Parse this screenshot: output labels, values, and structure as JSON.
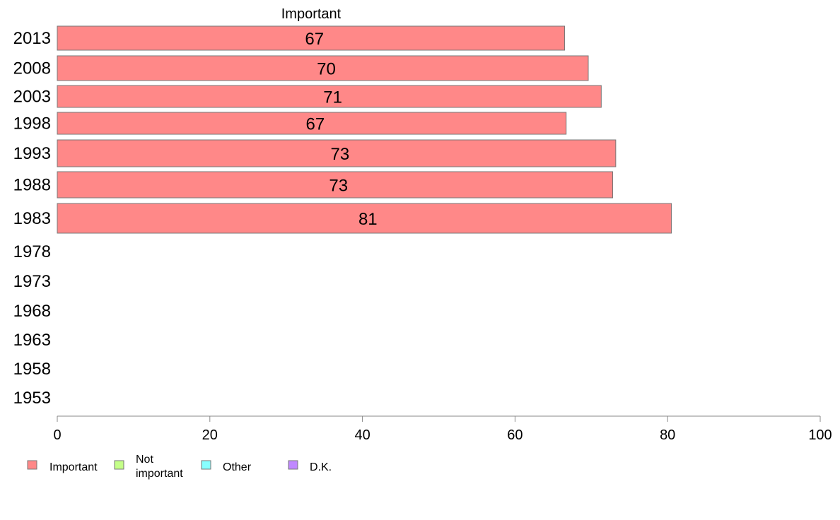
{
  "chart_data": {
    "type": "bar",
    "orientation": "horizontal",
    "stacked": true,
    "categories": [
      "2013",
      "2008",
      "2003",
      "1998",
      "1993",
      "1988",
      "1983",
      "1978",
      "1973",
      "1968",
      "1963",
      "1958",
      "1953"
    ],
    "series": [
      {
        "name": "Important",
        "color": "#ff8888",
        "values": [
          66.5,
          69.6,
          71.3,
          66.7,
          73.2,
          72.8,
          80.5,
          null,
          null,
          null,
          null,
          null,
          null
        ],
        "labels": [
          "67",
          "70",
          "71",
          "67",
          "73",
          "73",
          "81",
          "",
          "",
          "",
          "",
          "",
          ""
        ]
      },
      {
        "name": "Not important",
        "color": "#c4ff88",
        "values": [
          null,
          null,
          null,
          null,
          null,
          null,
          null,
          null,
          null,
          null,
          null,
          null,
          null
        ]
      },
      {
        "name": "Other",
        "color": "#88ffff",
        "values": [
          null,
          null,
          null,
          null,
          null,
          null,
          null,
          null,
          null,
          null,
          null,
          null,
          null
        ]
      },
      {
        "name": "D.K.",
        "color": "#c088ff",
        "values": [
          null,
          null,
          null,
          null,
          null,
          null,
          null,
          null,
          null,
          null,
          null,
          null,
          null
        ]
      }
    ],
    "column_header": "Important",
    "xlim": [
      0,
      100
    ],
    "xticks": [
      "0",
      "20",
      "40",
      "60",
      "80",
      "100"
    ],
    "title": "",
    "xlabel": "",
    "ylabel": "",
    "grid": false,
    "legend_placement": "bottom-left",
    "legend": [
      {
        "label": "Important",
        "color": "#ff8888"
      },
      {
        "label_lines": [
          "Not",
          "important"
        ],
        "color": "#c4ff88"
      },
      {
        "label": "Other",
        "color": "#88ffff"
      },
      {
        "label": "D.K.",
        "color": "#c088ff"
      }
    ]
  }
}
